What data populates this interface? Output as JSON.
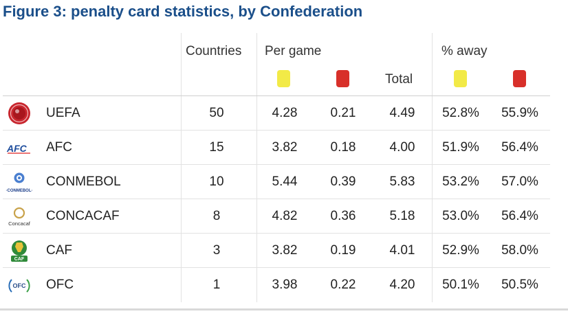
{
  "title": "Figure 3: penalty card statistics, by Confederation",
  "headers": {
    "countries": "Countries",
    "per_game": "Per game",
    "total": "Total",
    "pct_away": "% away"
  },
  "colors": {
    "title": "#1b4f8a",
    "yellow_card": "#f2ea47",
    "red_card": "#d8302a",
    "grid": "#e2e2e2"
  },
  "rows": [
    {
      "logo": "uefa-logo-icon",
      "confederation": "UEFA",
      "countries": "50",
      "yellow_per_game": "4.28",
      "red_per_game": "0.21",
      "total": "4.49",
      "yellow_away": "52.8%",
      "red_away": "55.9%"
    },
    {
      "logo": "afc-logo-icon",
      "confederation": "AFC",
      "countries": "15",
      "yellow_per_game": "3.82",
      "red_per_game": "0.18",
      "total": "4.00",
      "yellow_away": "51.9%",
      "red_away": "56.4%"
    },
    {
      "logo": "conmebol-logo-icon",
      "confederation": "CONMEBOL",
      "countries": "10",
      "yellow_per_game": "5.44",
      "red_per_game": "0.39",
      "total": "5.83",
      "yellow_away": "53.2%",
      "red_away": "57.0%"
    },
    {
      "logo": "concacaf-logo-icon",
      "confederation": "CONCACAF",
      "countries": "8",
      "yellow_per_game": "4.82",
      "red_per_game": "0.36",
      "total": "5.18",
      "yellow_away": "53.0%",
      "red_away": "56.4%"
    },
    {
      "logo": "caf-logo-icon",
      "confederation": "CAF",
      "countries": "3",
      "yellow_per_game": "3.82",
      "red_per_game": "0.19",
      "total": "4.01",
      "yellow_away": "52.9%",
      "red_away": "58.0%"
    },
    {
      "logo": "ofc-logo-icon",
      "confederation": "OFC",
      "countries": "1",
      "yellow_per_game": "3.98",
      "red_per_game": "0.22",
      "total": "4.20",
      "yellow_away": "50.1%",
      "red_away": "50.5%"
    }
  ],
  "logo_texts": {
    "afc": "AFC",
    "conmebol": "·CONMEBOL·",
    "concacaf": "Concacaf",
    "caf": "CAF",
    "ofc": "OFC"
  }
}
